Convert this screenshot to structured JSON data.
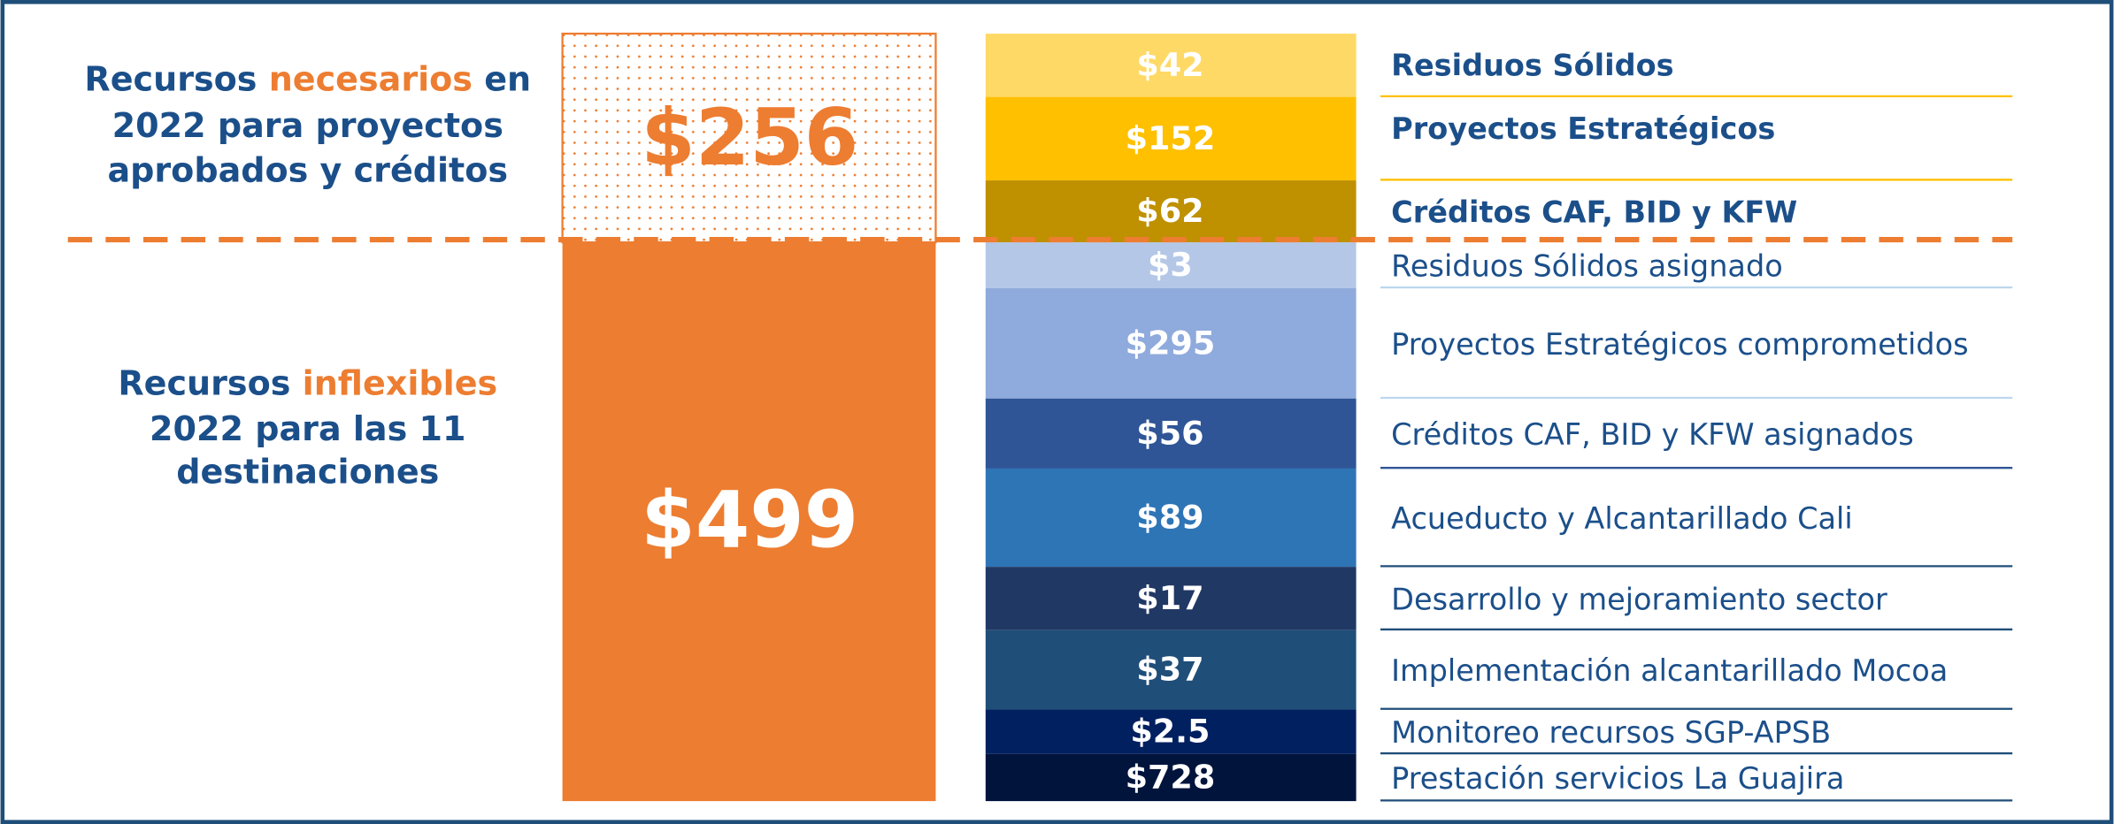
{
  "left": {
    "top": [
      {
        "text": "Recursos",
        "highlight": "necesarios",
        "after": "en"
      },
      "2022 para proyectos",
      "aprobados y créditos"
    ],
    "bottom": [
      {
        "text": "Recursos",
        "highlight": "inflexibles"
      },
      "2022 para las 11",
      "destinaciones"
    ]
  },
  "totals": {
    "needed": "$256",
    "inflexible": "$499"
  },
  "segments": [
    {
      "amount": "$42",
      "label": "Residuos Sólidos",
      "color": "#FFD966"
    },
    {
      "amount": "$152",
      "label": "Proyectos Estratégicos",
      "color": "#FFC000"
    },
    {
      "amount": "$62",
      "label": "Créditos CAF, BID y KFW",
      "color": "#BF9000"
    },
    {
      "amount": "$3",
      "label": "Residuos Sólidos asignado",
      "color": "#B4C7E7"
    },
    {
      "amount": "$295",
      "label": "Proyectos Estratégicos comprometidos",
      "color": "#8FAADC"
    },
    {
      "amount": "$56",
      "label": "Créditos CAF, BID y KFW asignados",
      "color": "#2F5597"
    },
    {
      "amount": "$89",
      "label": "Acueducto y Alcantarillado Cali",
      "color": "#2E75B6"
    },
    {
      "amount": "$17",
      "label": "Desarrollo y mejoramiento sector",
      "color": "#203864"
    },
    {
      "amount": "$37",
      "label": "Implementación alcantarillado Mocoa",
      "color": "#1F4E79"
    },
    {
      "amount": "$2.5",
      "label": "Monitoreo recursos SGP-APSB",
      "color": "#002060"
    },
    {
      "amount": "$728",
      "label": "Prestación servicios La Guajira",
      "color": "#00143C"
    }
  ]
}
